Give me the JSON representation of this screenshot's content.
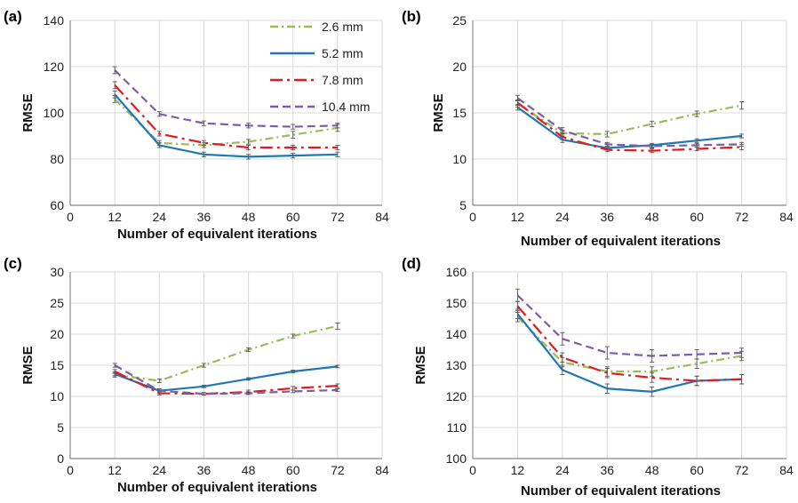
{
  "legend": [
    {
      "name": "2.6 mm",
      "color": "#9bbb59",
      "dash": "dashdot"
    },
    {
      "name": "5.2 mm",
      "color": "#1f77b4",
      "dash": "solid"
    },
    {
      "name": "7.8 mm",
      "color": "#e41a1c",
      "dash": "longdashdot"
    },
    {
      "name": "10.4 mm",
      "color": "#7b5ea7",
      "dash": "dashed"
    }
  ],
  "chart_data": [
    {
      "panel": "(a)",
      "type": "line",
      "xlabel": "Number of equivalent iterations",
      "ylabel": "RMSE",
      "xlim": [
        0,
        84
      ],
      "xticks": [
        0,
        12,
        24,
        36,
        48,
        60,
        72,
        84
      ],
      "ylim": [
        60,
        140
      ],
      "yticks": [
        60,
        80,
        100,
        120,
        140
      ],
      "x": [
        12,
        24,
        36,
        48,
        60,
        72
      ],
      "series": [
        {
          "name": "2.6 mm",
          "values": [
            106,
            87,
            86,
            87.5,
            90.5,
            93.5
          ],
          "errors": [
            1.5,
            1,
            1,
            1,
            1.5,
            1.5
          ]
        },
        {
          "name": "5.2 mm",
          "values": [
            108,
            86,
            82,
            81,
            81.5,
            82
          ],
          "errors": [
            1.5,
            1,
            1,
            1,
            1,
            1
          ]
        },
        {
          "name": "7.8 mm",
          "values": [
            112,
            91,
            87,
            85,
            85,
            85
          ],
          "errors": [
            1.5,
            1,
            1,
            1,
            1,
            1
          ]
        },
        {
          "name": "10.4 mm",
          "values": [
            118.5,
            99.5,
            95.5,
            94.5,
            94,
            94.5
          ],
          "errors": [
            1.5,
            1,
            1,
            1,
            1,
            1
          ]
        }
      ]
    },
    {
      "panel": "(b)",
      "type": "line",
      "xlabel": "Number of equivalent iterations",
      "ylabel": "RMSE",
      "xlim": [
        0,
        84
      ],
      "xticks": [
        0,
        12,
        24,
        36,
        48,
        60,
        72,
        84
      ],
      "ylim": [
        5,
        25
      ],
      "yticks": [
        5,
        10,
        15,
        20,
        25
      ],
      "x": [
        12,
        24,
        36,
        48,
        60,
        72
      ],
      "series": [
        {
          "name": "2.6 mm",
          "values": [
            16,
            12.8,
            12.7,
            13.8,
            14.9,
            15.8
          ],
          "errors": [
            0.4,
            0.3,
            0.3,
            0.3,
            0.3,
            0.4
          ]
        },
        {
          "name": "5.2 mm",
          "values": [
            15.6,
            12.1,
            11.2,
            11.5,
            12,
            12.5
          ],
          "errors": [
            0.3,
            0.3,
            0.2,
            0.2,
            0.2,
            0.2
          ]
        },
        {
          "name": "7.8 mm",
          "values": [
            16.1,
            12.4,
            11,
            10.9,
            11.1,
            11.3
          ],
          "errors": [
            0.3,
            0.3,
            0.2,
            0.2,
            0.2,
            0.3
          ]
        },
        {
          "name": "10.4 mm",
          "values": [
            16.6,
            13.1,
            11.6,
            11.4,
            11.5,
            11.6
          ],
          "errors": [
            0.3,
            0.3,
            0.2,
            0.2,
            0.2,
            0.2
          ]
        }
      ]
    },
    {
      "panel": "(c)",
      "type": "line",
      "xlabel": "Number of equivalent iterations",
      "ylabel": "RMSE",
      "xlim": [
        0,
        84
      ],
      "xticks": [
        0,
        12,
        24,
        36,
        48,
        60,
        72,
        84
      ],
      "ylim": [
        0,
        30
      ],
      "yticks": [
        0,
        5,
        10,
        15,
        20,
        25,
        30
      ],
      "x": [
        12,
        24,
        36,
        48,
        60,
        72
      ],
      "series": [
        {
          "name": "2.6 mm",
          "values": [
            13.5,
            12.5,
            15,
            17.5,
            19.7,
            21.3
          ],
          "errors": [
            0.4,
            0.3,
            0.3,
            0.3,
            0.3,
            0.5
          ]
        },
        {
          "name": "5.2 mm",
          "values": [
            13.6,
            10.9,
            11.6,
            12.8,
            14,
            14.8
          ],
          "errors": [
            0.3,
            0.3,
            0.2,
            0.2,
            0.2,
            0.2
          ]
        },
        {
          "name": "7.8 mm",
          "values": [
            14,
            10.5,
            10.4,
            10.7,
            11.3,
            11.7
          ],
          "errors": [
            0.3,
            0.3,
            0.2,
            0.3,
            0.3,
            0.3
          ]
        },
        {
          "name": "10.4 mm",
          "values": [
            15,
            10.9,
            10.4,
            10.5,
            10.8,
            11
          ],
          "errors": [
            0.3,
            0.3,
            0.2,
            0.2,
            0.2,
            0.2
          ]
        }
      ]
    },
    {
      "panel": "(d)",
      "type": "line",
      "xlabel": "Number of equivalent iterations",
      "ylabel": "RMSE",
      "xlim": [
        0,
        84
      ],
      "xticks": [
        0,
        12,
        24,
        36,
        48,
        60,
        72,
        84
      ],
      "ylim": [
        100,
        160
      ],
      "yticks": [
        100,
        110,
        120,
        130,
        140,
        150,
        160
      ],
      "x": [
        12,
        24,
        36,
        48,
        60,
        72
      ],
      "series": [
        {
          "name": "2.6 mm",
          "values": [
            145.5,
            131,
            128,
            128,
            130.5,
            133
          ],
          "errors": [
            1.5,
            1.5,
            1.5,
            1.5,
            1.5,
            1.5
          ]
        },
        {
          "name": "5.2 mm",
          "values": [
            146.5,
            128.5,
            122.5,
            121.5,
            125,
            125.5
          ],
          "errors": [
            1.5,
            1.5,
            1.5,
            1.5,
            1.5,
            1.5
          ]
        },
        {
          "name": "7.8 mm",
          "values": [
            149,
            132.5,
            127.5,
            126,
            125,
            125.5
          ],
          "errors": [
            1.5,
            1.5,
            1.5,
            1.5,
            1.5,
            1.5
          ]
        },
        {
          "name": "10.4 mm",
          "values": [
            152.5,
            138.5,
            134,
            133,
            133.5,
            134
          ],
          "errors": [
            2,
            2,
            2,
            2,
            1.5,
            1.5
          ]
        }
      ]
    }
  ]
}
